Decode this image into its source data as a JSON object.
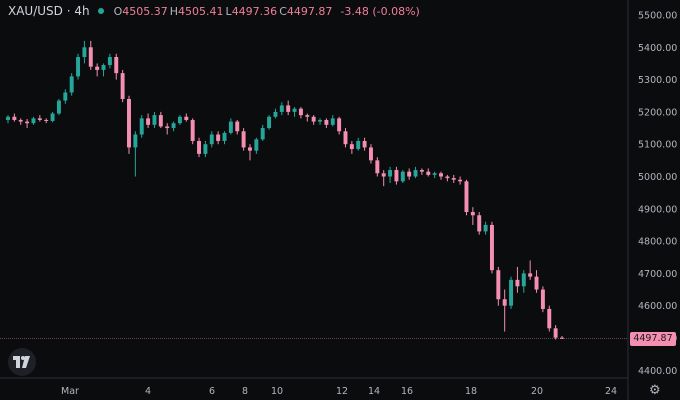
{
  "header": {
    "symbol": "XAU/USD · 4h",
    "open_label": "O",
    "open": "4505.37",
    "high_label": "H",
    "high": "4505.41",
    "low_label": "L",
    "low": "4497.36",
    "close_label": "C",
    "close": "4497.87",
    "change": "-3.48 (-0.08%)"
  },
  "last_price_label": "4497.87",
  "colors": {
    "up": "#26a69a",
    "down": "#f48fb1",
    "background": "#0b0c0e"
  },
  "icons": {
    "logo": "tradingview-logo",
    "settings": "gear-icon"
  },
  "chart_data": {
    "type": "candlestick",
    "title": "",
    "xlabel": "",
    "ylabel": "",
    "ylim": [
      4380,
      5530
    ],
    "y_ticks": [
      5500,
      5400,
      5300,
      5200,
      5100,
      5000,
      4900,
      4800,
      4700,
      4600,
      4500,
      4400
    ],
    "y_tick_labels": [
      "5500.00",
      "5400.00",
      "5300.00",
      "5200.00",
      "5100.00",
      "5000.00",
      "4900.00",
      "4800.00",
      "4700.00",
      "4600.00",
      "4500.00",
      "4400.00"
    ],
    "x_tick_labels": [
      "Mar",
      "4",
      "6",
      "8",
      "10",
      "12",
      "14",
      "16",
      "18",
      "20",
      "24"
    ],
    "grid": false,
    "last_price": 4497.87,
    "candles": [
      [
        5175,
        5190,
        5165,
        5185
      ],
      [
        5185,
        5195,
        5170,
        5175
      ],
      [
        5175,
        5180,
        5160,
        5170
      ],
      [
        5170,
        5178,
        5150,
        5165
      ],
      [
        5165,
        5185,
        5160,
        5180
      ],
      [
        5180,
        5190,
        5170,
        5175
      ],
      [
        5175,
        5180,
        5165,
        5172
      ],
      [
        5172,
        5200,
        5168,
        5195
      ],
      [
        5195,
        5240,
        5190,
        5235
      ],
      [
        5235,
        5270,
        5225,
        5260
      ],
      [
        5260,
        5320,
        5250,
        5310
      ],
      [
        5310,
        5380,
        5300,
        5370
      ],
      [
        5370,
        5420,
        5350,
        5400
      ],
      [
        5400,
        5420,
        5330,
        5340
      ],
      [
        5340,
        5350,
        5310,
        5330
      ],
      [
        5330,
        5350,
        5310,
        5345
      ],
      [
        5345,
        5380,
        5335,
        5370
      ],
      [
        5370,
        5380,
        5300,
        5320
      ],
      [
        5320,
        5330,
        5230,
        5240
      ],
      [
        5240,
        5250,
        5070,
        5090
      ],
      [
        5090,
        5140,
        5000,
        5130
      ],
      [
        5130,
        5190,
        5120,
        5180
      ],
      [
        5180,
        5195,
        5150,
        5160
      ],
      [
        5160,
        5200,
        5150,
        5190
      ],
      [
        5190,
        5200,
        5150,
        5155
      ],
      [
        5155,
        5165,
        5130,
        5150
      ],
      [
        5150,
        5170,
        5140,
        5165
      ],
      [
        5165,
        5190,
        5160,
        5185
      ],
      [
        5185,
        5195,
        5170,
        5175
      ],
      [
        5175,
        5180,
        5100,
        5110
      ],
      [
        5110,
        5120,
        5060,
        5070
      ],
      [
        5070,
        5110,
        5060,
        5100
      ],
      [
        5100,
        5140,
        5090,
        5130
      ],
      [
        5130,
        5140,
        5100,
        5110
      ],
      [
        5110,
        5140,
        5100,
        5135
      ],
      [
        5135,
        5180,
        5130,
        5170
      ],
      [
        5170,
        5175,
        5130,
        5140
      ],
      [
        5140,
        5150,
        5080,
        5090
      ],
      [
        5090,
        5100,
        5050,
        5080
      ],
      [
        5080,
        5120,
        5070,
        5115
      ],
      [
        5115,
        5160,
        5110,
        5150
      ],
      [
        5150,
        5190,
        5145,
        5185
      ],
      [
        5185,
        5210,
        5180,
        5200
      ],
      [
        5200,
        5230,
        5190,
        5220
      ],
      [
        5220,
        5235,
        5190,
        5200
      ],
      [
        5200,
        5215,
        5185,
        5210
      ],
      [
        5210,
        5215,
        5180,
        5190
      ],
      [
        5190,
        5195,
        5170,
        5185
      ],
      [
        5185,
        5190,
        5160,
        5170
      ],
      [
        5170,
        5180,
        5160,
        5175
      ],
      [
        5175,
        5180,
        5150,
        5160
      ],
      [
        5160,
        5190,
        5155,
        5180
      ],
      [
        5180,
        5185,
        5130,
        5140
      ],
      [
        5140,
        5150,
        5090,
        5100
      ],
      [
        5100,
        5110,
        5070,
        5085
      ],
      [
        5085,
        5120,
        5080,
        5110
      ],
      [
        5110,
        5120,
        5080,
        5090
      ],
      [
        5090,
        5100,
        5040,
        5050
      ],
      [
        5050,
        5060,
        5000,
        5010
      ],
      [
        5010,
        5020,
        4970,
        5000
      ],
      [
        5000,
        5030,
        4980,
        5020
      ],
      [
        5020,
        5030,
        4975,
        4985
      ],
      [
        4985,
        5020,
        4980,
        5015
      ],
      [
        5015,
        5025,
        4990,
        5000
      ],
      [
        5000,
        5030,
        4995,
        5020
      ],
      [
        5020,
        5025,
        5005,
        5015
      ],
      [
        5015,
        5025,
        5000,
        5005
      ],
      [
        5005,
        5015,
        4995,
        5010
      ],
      [
        5010,
        5015,
        4990,
        5000
      ],
      [
        5000,
        5005,
        4985,
        4995
      ],
      [
        4995,
        5005,
        4980,
        4990
      ],
      [
        4990,
        5000,
        4975,
        4985
      ],
      [
        4985,
        4990,
        4880,
        4890
      ],
      [
        4890,
        4905,
        4850,
        4880
      ],
      [
        4880,
        4890,
        4820,
        4830
      ],
      [
        4830,
        4860,
        4820,
        4850
      ],
      [
        4850,
        4860,
        4700,
        4710
      ],
      [
        4710,
        4720,
        4600,
        4620
      ],
      [
        4620,
        4650,
        4520,
        4600
      ],
      [
        4600,
        4690,
        4590,
        4680
      ],
      [
        4680,
        4720,
        4640,
        4660
      ],
      [
        4660,
        4710,
        4640,
        4700
      ],
      [
        4700,
        4740,
        4680,
        4690
      ],
      [
        4690,
        4710,
        4640,
        4650
      ],
      [
        4650,
        4660,
        4580,
        4590
      ],
      [
        4590,
        4600,
        4520,
        4530
      ],
      [
        4530,
        4540,
        4495,
        4501
      ],
      [
        4501,
        4506,
        4497,
        4498
      ]
    ]
  }
}
